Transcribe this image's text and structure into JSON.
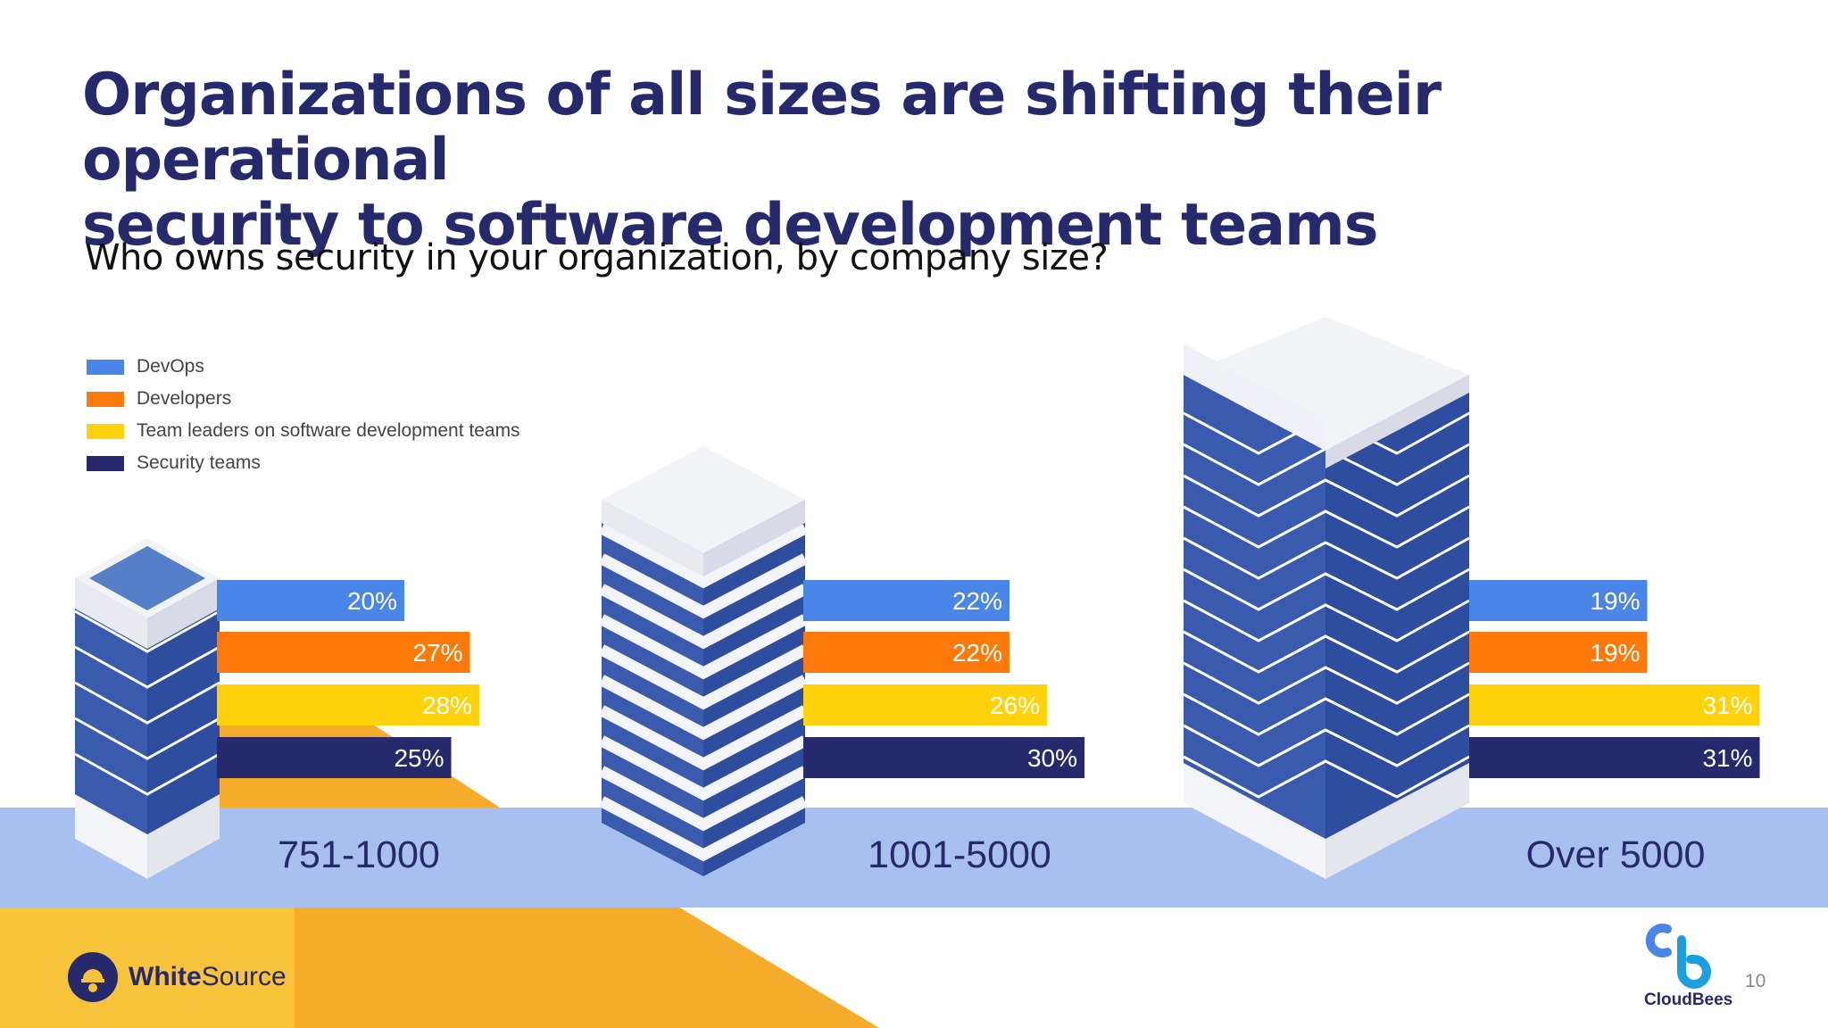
{
  "title_lines": [
    "Organizations of all sizes are shifting their operational",
    "security to software development teams"
  ],
  "subtitle": "Who owns security in your organization, by company size?",
  "colors": {
    "navy": "#262a6c",
    "blue": "#4a86e8",
    "orange": "#fd7a0a",
    "yellow": "#ffd20b",
    "band": "#a8c0f0",
    "gold": "#f7b731",
    "building": "#3a5aae"
  },
  "chart_data": {
    "type": "bar",
    "orientation": "horizontal",
    "title": "Who owns security in your organization, by company size?",
    "categories": [
      "751-1000",
      "1001-5000",
      "Over 5000"
    ],
    "series": [
      {
        "name": "DevOps",
        "color": "#4a86e8",
        "values": [
          20,
          22,
          19
        ]
      },
      {
        "name": "Developers",
        "color": "#fd7a0a",
        "values": [
          27,
          22,
          19
        ]
      },
      {
        "name": "Team leaders on software development teams",
        "color": "#ffd20b",
        "values": [
          28,
          26,
          31
        ]
      },
      {
        "name": "Security teams",
        "color": "#262a6c",
        "values": [
          25,
          30,
          31
        ]
      }
    ],
    "value_suffix": "%",
    "legend_position": "top-left"
  },
  "legend": [
    {
      "label": "DevOps",
      "color": "#4a86e8"
    },
    {
      "label": "Developers",
      "color": "#fd7a0a"
    },
    {
      "label": "Team leaders on software development teams",
      "color": "#ffd20b"
    },
    {
      "label": "Security teams",
      "color": "#262a6c"
    }
  ],
  "logos": {
    "whitesource_bold": "White",
    "whitesource_light": "Source",
    "cloudbees": "CloudBees"
  },
  "page_number": "10"
}
